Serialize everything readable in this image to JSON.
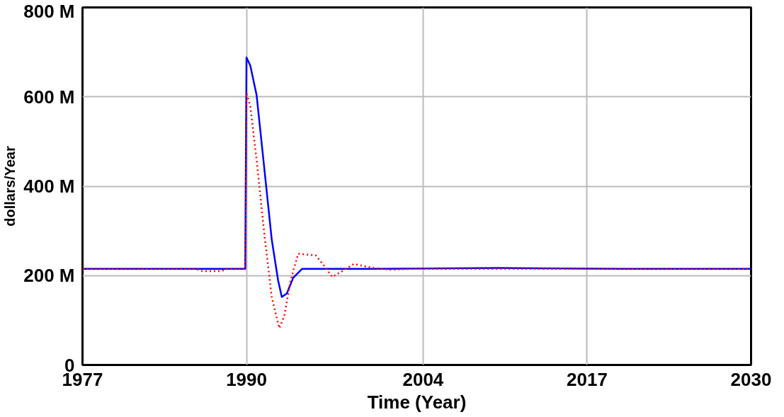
{
  "chart_data": {
    "type": "line",
    "xlabel": "Time (Year)",
    "ylabel": "dollars/Year",
    "xlim": [
      1977,
      2030
    ],
    "ylim": [
      0,
      800
    ],
    "xticks": [
      1977,
      1990,
      2004,
      2017,
      2030
    ],
    "yticks": [
      {
        "value": 0,
        "label": "0"
      },
      {
        "value": 200,
        "label": "200 M"
      },
      {
        "value": 400,
        "label": "400 M"
      },
      {
        "value": 600,
        "label": "600 M"
      },
      {
        "value": 800,
        "label": "800 M"
      }
    ],
    "grid": true,
    "marker": "none",
    "series": [
      {
        "color": "#0000ff",
        "line_style": "solid",
        "x": [
          1977,
          1985,
          1989.9,
          1990.0,
          1990.3,
          1990.8,
          1991.4,
          1992.0,
          1992.5,
          1992.8,
          1993.2,
          1993.7,
          1994.4,
          2000,
          2010,
          2020,
          2030
        ],
        "values": [
          215,
          215,
          215,
          688,
          670,
          604,
          443,
          281,
          190,
          152,
          160,
          195,
          215,
          215,
          217,
          215,
          215
        ]
      },
      {
        "color": "#ff0000",
        "line_style": "dotted",
        "x": [
          1977,
          1986,
          1986.5,
          1988,
          1988.5,
          1989.9,
          1990.0,
          1990.3,
          1990.8,
          1991.4,
          1992.0,
          1992.6,
          1993.0,
          1993.5,
          1994.1,
          1995.5,
          1996.2,
          1996.8,
          1997.6,
          1998.5,
          2000,
          2001.5,
          2003,
          2010,
          2020,
          2030
        ],
        "values": [
          215,
          215,
          210,
          210,
          215,
          215,
          608,
          580,
          459,
          297,
          152,
          82,
          110,
          190,
          249,
          245,
          220,
          197,
          210,
          226,
          217,
          213,
          215,
          215,
          215,
          215
        ]
      }
    ]
  }
}
